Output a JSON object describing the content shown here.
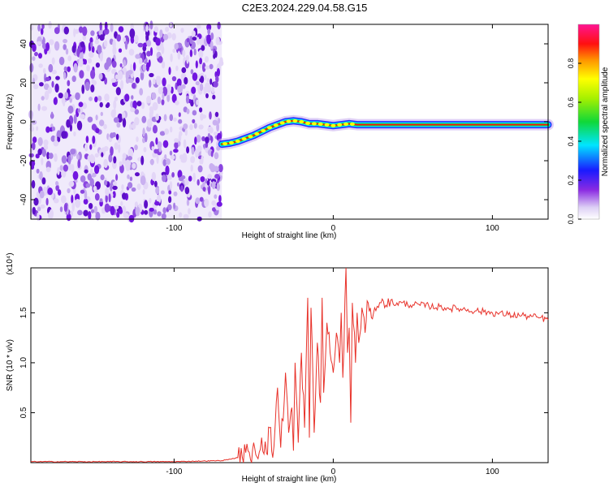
{
  "title": "C2E3.2024.229.04.58.G15",
  "spectrogram": {
    "xlabel": "Height of straight line (km)",
    "ylabel": "Frequency (Hz)",
    "xlim": [
      -190,
      135
    ],
    "ylim": [
      -50,
      50
    ],
    "xticks": [
      -100,
      0,
      100
    ],
    "yticks": [
      -40,
      -20,
      0,
      20,
      40
    ],
    "noise_region_x": [
      -190,
      -70
    ],
    "track": {
      "x": [
        -70,
        -65,
        -60,
        -55,
        -50,
        -45,
        -40,
        -35,
        -30,
        -25,
        -20,
        -15,
        -10,
        -5,
        0,
        5,
        10,
        15,
        20,
        30,
        50,
        80,
        100,
        120,
        135
      ],
      "freq": [
        -11.5,
        -11,
        -10,
        -8.5,
        -7,
        -5,
        -3,
        -1.5,
        0,
        0.5,
        0,
        -1,
        -1,
        -1.5,
        -2,
        -1.5,
        -1,
        -1.5,
        -1.5,
        -1.5,
        -1.5,
        -1.5,
        -1.5,
        -1.5,
        -1.5
      ]
    }
  },
  "colorbar": {
    "label": "Normalized spectral amplitude",
    "ticks": [
      "0.0",
      "0.2",
      "0.4",
      "0.6",
      "0.8"
    ],
    "range": [
      0,
      1
    ]
  },
  "chart_data": {
    "type": "line",
    "title": "C2E3.2024.229.04.58.G15",
    "xlabel": "Height of straight line (km)",
    "ylabel": "SNR (10 * v/v)",
    "y_multiplier": "(x10⁴)",
    "xlim": [
      -190,
      135
    ],
    "ylim": [
      0,
      1.95
    ],
    "xticks": [
      -100,
      0,
      100
    ],
    "yticks": [
      0.5,
      1.0,
      1.5
    ],
    "ytick_labels": [
      "0.5",
      "1.0",
      "1.5"
    ],
    "series": [
      {
        "color": "#e8322a",
        "x": [
          -190,
          -150,
          -100,
          -70,
          -60,
          -55,
          -52,
          -50,
          -48,
          -45,
          -42,
          -40,
          -38,
          -35,
          -33,
          -30,
          -28,
          -26,
          -25,
          -24,
          -22,
          -20,
          -18,
          -16,
          -15,
          -14,
          -12,
          -10,
          -8,
          -7,
          -6,
          -5,
          -4,
          -2,
          0,
          2,
          4,
          5,
          6,
          8,
          9,
          10,
          11,
          12,
          14,
          15,
          16,
          18,
          20,
          22,
          24,
          26,
          30,
          40,
          50,
          60,
          70,
          80,
          90,
          100,
          110,
          120,
          130,
          135
        ],
        "values": [
          0.01,
          0.01,
          0.01,
          0.02,
          0.05,
          0.1,
          0.03,
          0.2,
          0.06,
          0.25,
          0.1,
          0.35,
          0.05,
          0.75,
          0.15,
          0.9,
          0.3,
          0.55,
          0.12,
          1.0,
          0.2,
          1.1,
          0.35,
          1.65,
          0.25,
          1.55,
          0.3,
          1.2,
          0.6,
          1.65,
          0.7,
          1.0,
          1.4,
          1.1,
          0.9,
          1.3,
          1.0,
          1.5,
          0.85,
          1.95,
          1.1,
          1.35,
          0.4,
          1.6,
          1.0,
          1.5,
          1.2,
          1.55,
          1.3,
          1.6,
          1.45,
          1.55,
          1.6,
          1.6,
          1.58,
          1.57,
          1.55,
          1.54,
          1.52,
          1.5,
          1.48,
          1.47,
          1.45,
          1.43
        ]
      }
    ]
  }
}
